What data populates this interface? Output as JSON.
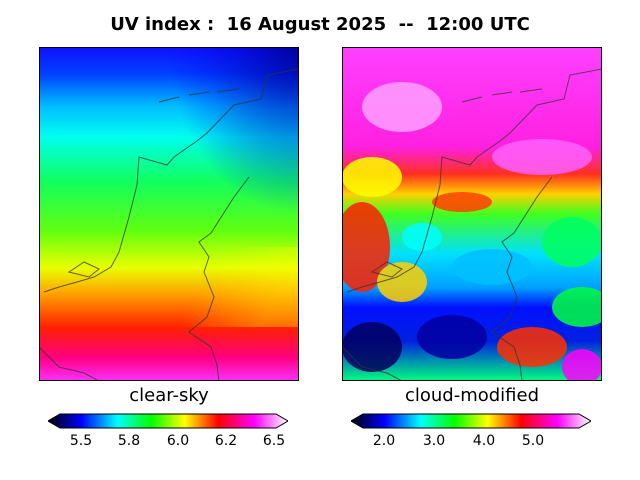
{
  "title": "UV index :  16 August 2025  --  12:00 UTC",
  "panels": {
    "left": {
      "label": "clear-sky",
      "colorbar_ticks": [
        "5.5",
        "5.8",
        "6.0",
        "6.2",
        "6.5"
      ],
      "colorbar_range": [
        5.4,
        6.5
      ]
    },
    "right": {
      "label": "cloud-modified",
      "colorbar_ticks": [
        "2.0",
        "3.0",
        "4.0",
        "5.0"
      ],
      "colorbar_range": [
        1.4,
        6.1
      ]
    }
  },
  "colormap": [
    "#000000",
    "#0000ff",
    "#00ffff",
    "#00ff00",
    "#ffff00",
    "#ff0000",
    "#ff00ff",
    "#ffffff"
  ]
}
